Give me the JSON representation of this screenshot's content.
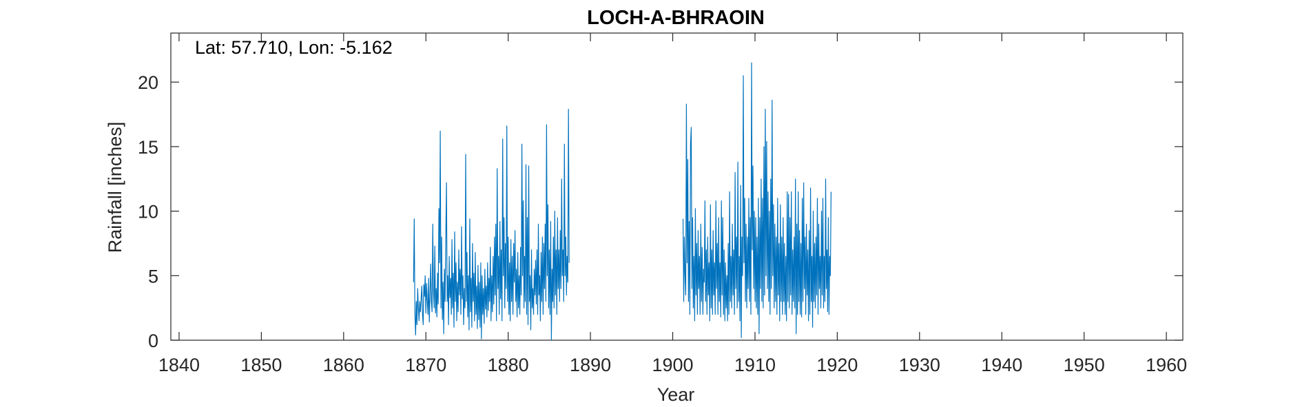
{
  "chart_data": {
    "type": "line",
    "title": "LOCH-A-BHRAOIN",
    "annotation": "Lat: 57.710, Lon: -5.162",
    "xlabel": "Year",
    "ylabel": "Rainfall [inches]",
    "xlim": [
      1839,
      1962
    ],
    "ylim": [
      0,
      23.8
    ],
    "xticks": [
      1840,
      1850,
      1860,
      1870,
      1880,
      1890,
      1900,
      1910,
      1920,
      1930,
      1940,
      1950,
      1960
    ],
    "yticks": [
      0,
      5,
      10,
      15,
      20
    ],
    "grid": false,
    "box": true,
    "series": [
      {
        "color": "#0072BD",
        "segments": [
          {
            "start": 1868.5,
            "step": 0.08333,
            "values": [
              4.5,
              9.4,
              2.0,
              0.4,
              3.0,
              1.2,
              4.0,
              2.5,
              1.5,
              3.0,
              2.2,
              3.2,
              4.2,
              2.0,
              1.2,
              4.3,
              3.4,
              5.0,
              2.1,
              4.4,
              3.1,
              2.0,
              4.8,
              1.4,
              3.5,
              5.9,
              3.0,
              2.2,
              9.0,
              3.8,
              2.5,
              7.3,
              2.1,
              4.0,
              1.8,
              5.2,
              2.8,
              10.2,
              6.0,
              16.2,
              2.5,
              8.0,
              1.6,
              4.5,
              0.5,
              5.5,
              3.0,
              7.9,
              12.2,
              3.0,
              5.0,
              1.2,
              6.5,
              3.3,
              4.8,
              2.0,
              7.8,
              2.5,
              5.2,
              1.0,
              8.4,
              3.0,
              6.0,
              1.5,
              4.5,
              2.2,
              7.0,
              3.5,
              5.5,
              2.0,
              8.8,
              3.2,
              5.0,
              1.2,
              4.0,
              2.5,
              14.4,
              3.0,
              6.8,
              1.8,
              5.0,
              0.8,
              9.4,
              2.2,
              4.8,
              1.0,
              7.5,
              3.0,
              5.2,
              1.5,
              6.8,
              2.0,
              4.2,
              0.9,
              5.8,
              1.6,
              4.5,
              1.0,
              6.0,
              0.1,
              5.0,
              2.0,
              4.0,
              1.3,
              5.5,
              2.4,
              4.2,
              1.8,
              6.0,
              2.3,
              4.8,
              3.0,
              7.2,
              1.5,
              5.0,
              2.2,
              6.5,
              2.8,
              8.0,
              3.5,
              9.0,
              1.5,
              13.3,
              4.0,
              6.5,
              2.0,
              9.2,
              3.2,
              7.0,
              1.5,
              15.6,
              5.0,
              9.5,
              2.5,
              7.5,
              4.0,
              16.6,
              3.0,
              8.0,
              2.0,
              6.0,
              1.5,
              7.8,
              3.0,
              6.5,
              2.0,
              7.5,
              4.5,
              8.5,
              3.0,
              5.5,
              1.8,
              6.8,
              2.5,
              5.0,
              2.0,
              7.2,
              3.5,
              15.2,
              5.0,
              10.8,
              2.5,
              6.5,
              3.0,
              13.6,
              2.0,
              9.5,
              1.2,
              13.5,
              3.0,
              5.0,
              0.8,
              7.0,
              2.5,
              4.0,
              2.0,
              5.5,
              3.5,
              6.2,
              2.8,
              7.0,
              2.0,
              9.0,
              3.5,
              5.0,
              1.5,
              6.8,
              3.0,
              8.0,
              2.0,
              7.5,
              4.0,
              9.0,
              3.0,
              16.7,
              5.0,
              10.5,
              2.5,
              7.0,
              2.0,
              9.2,
              0.0,
              5.5,
              3.0,
              8.0,
              2.5,
              10.0,
              3.5,
              7.0,
              2.0,
              9.5,
              4.0,
              7.0,
              3.0,
              8.5,
              4.0,
              12.5,
              5.0,
              7.0,
              3.0,
              15.2,
              5.0,
              8.0,
              3.5,
              6.5,
              4.5,
              17.9,
              6.0
            ]
          },
          {
            "start": 1901.25,
            "step": 0.08333,
            "values": [
              9.4,
              3.0,
              8.0,
              5.0,
              3.5,
              18.3,
              6.0,
              14.0,
              3.0,
              9.2,
              2.0,
              15.2,
              16.5,
              4.0,
              9.5,
              2.5,
              6.5,
              1.5,
              10.2,
              3.5,
              7.5,
              2.0,
              8.5,
              4.0,
              6.5,
              2.0,
              9.0,
              3.0,
              7.2,
              2.0,
              5.5,
              4.5,
              10.8,
              3.0,
              7.0,
              2.0,
              8.0,
              3.5,
              6.0,
              1.5,
              10.5,
              2.5,
              7.0,
              2.0,
              8.5,
              3.5,
              6.0,
              2.0,
              10.8,
              4.0,
              7.5,
              2.0,
              9.5,
              3.0,
              6.0,
              1.8,
              10.8,
              3.5,
              9.5,
              2.0,
              7.0,
              1.5,
              6.0,
              2.5,
              5.0,
              1.5,
              7.5,
              2.0,
              11.5,
              3.0,
              6.5,
              2.5,
              9.0,
              3.5,
              7.0,
              2.0,
              13.0,
              4.0,
              8.0,
              2.5,
              13.8,
              3.0,
              6.5,
              1.5,
              12.0,
              0.2,
              8.0,
              5.0,
              20.5,
              6.0,
              11.0,
              3.0,
              9.0,
              2.5,
              8.0,
              4.0,
              11.0,
              3.0,
              9.5,
              2.0,
              21.5,
              7.0,
              13.5,
              4.0,
              10.0,
              3.0,
              9.5,
              2.5,
              8.0,
              2.0,
              11.0,
              0.5,
              9.5,
              4.0,
              12.5,
              3.0,
              11.0,
              2.5,
              15.0,
              3.5,
              17.9,
              5.0,
              15.4,
              4.0,
              11.5,
              3.0,
              10.0,
              2.0,
              12.5,
              4.0,
              18.6,
              5.0,
              10.5,
              2.5,
              9.0,
              3.0,
              8.0,
              2.0,
              11.0,
              3.5,
              7.5,
              1.5,
              10.5,
              3.0,
              8.0,
              2.0,
              9.5,
              3.0,
              7.5,
              2.0,
              6.5,
              1.5,
              11.5,
              3.0,
              11.3,
              2.5,
              9.5,
              3.5,
              11.5,
              2.0,
              7.0,
              3.0,
              8.0,
              2.5,
              12.5,
              0.5,
              9.0,
              2.0,
              11.5,
              3.0,
              8.5,
              2.0,
              7.5,
              1.8,
              11.0,
              3.0,
              12.2,
              4.0,
              8.0,
              2.0,
              9.0,
              3.5,
              7.0,
              1.5,
              8.5,
              2.0,
              11.8,
              3.0,
              6.5,
              1.0,
              10.0,
              3.0,
              7.5,
              2.5,
              8.0,
              3.5,
              11.0,
              2.0,
              9.0,
              4.0,
              6.5,
              2.5,
              10.0,
              3.5,
              11.0,
              2.5,
              6.5,
              3.0,
              12.5,
              4.0,
              7.0,
              2.2,
              9.5,
              2.0,
              6.5,
              5.0,
              11.5
            ]
          }
        ]
      }
    ]
  }
}
